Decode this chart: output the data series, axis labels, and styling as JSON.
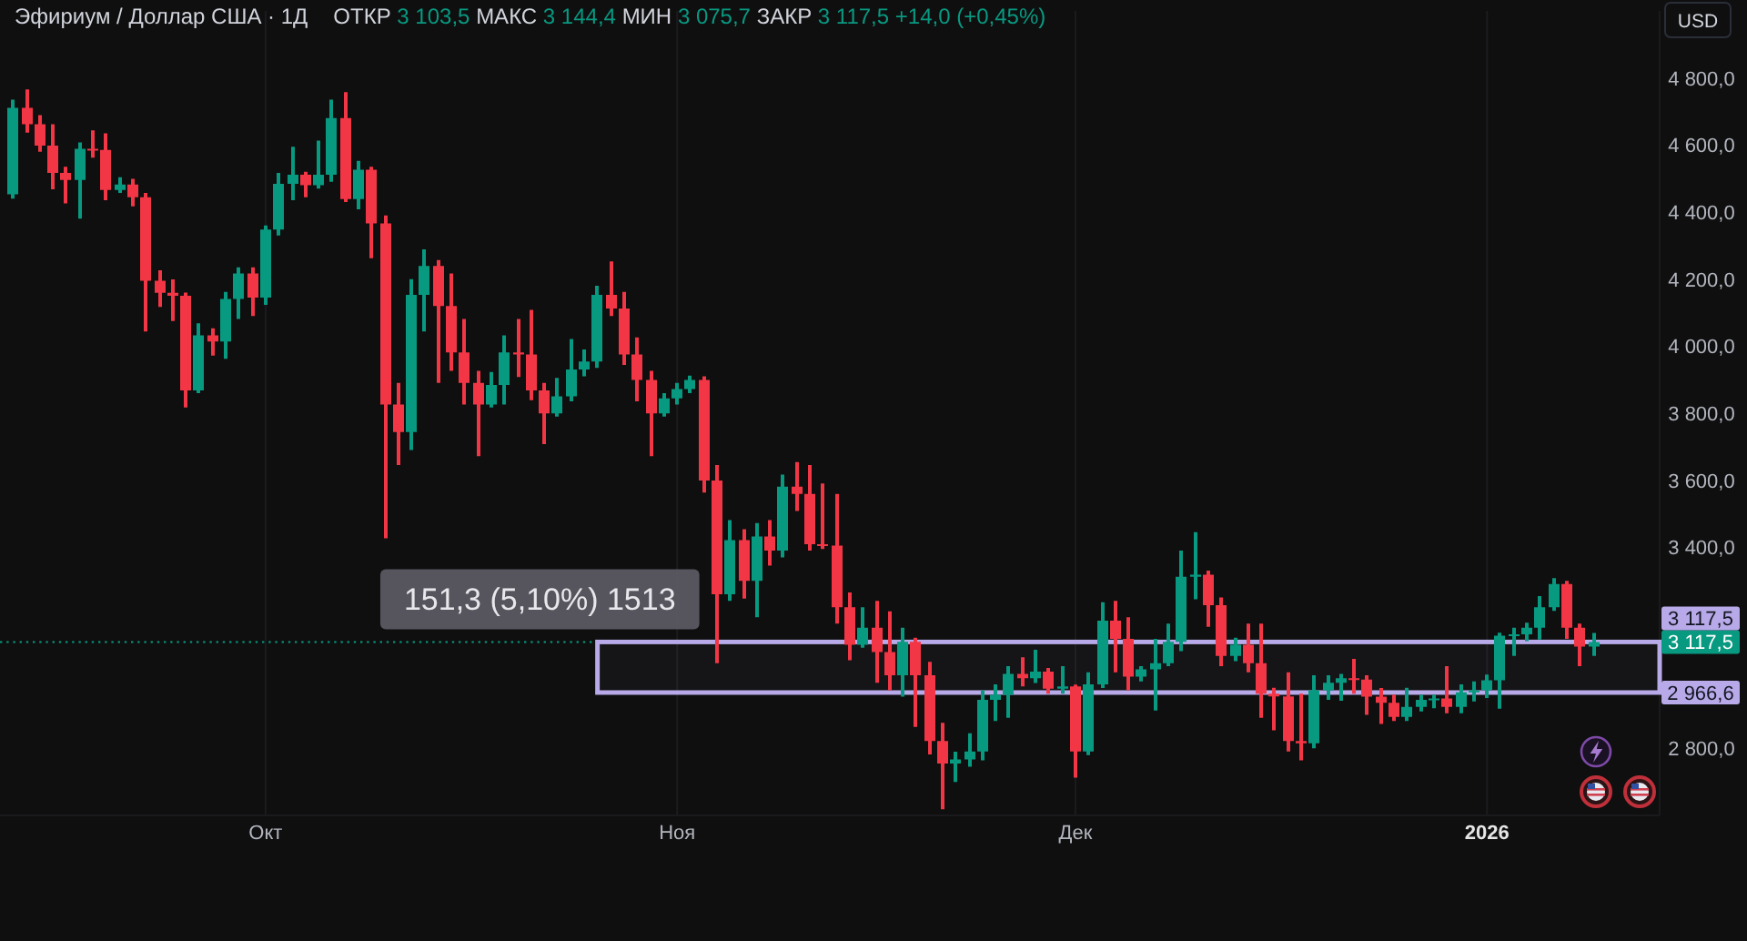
{
  "chart_data": {
    "type": "candlestick",
    "title": "Эфириум / Доллар США · 1Д",
    "subtitle": "ОТКР 3 103,5 МАКС 3 144,4 МИН 3 075,7 ЗАКР 3 117,5 +14,0 (+0,45%)",
    "ylabel": "USD",
    "categories": [
      null,
      null,
      null,
      null,
      null,
      null,
      null,
      null,
      null,
      null,
      null,
      null,
      null,
      null,
      null,
      null,
      null,
      null,
      null,
      "Окт",
      null,
      null,
      null,
      null,
      null,
      null,
      null,
      null,
      null,
      null,
      null,
      null,
      null,
      null,
      null,
      null,
      null,
      null,
      null,
      null,
      null,
      null,
      null,
      null,
      null,
      null,
      null,
      null,
      null,
      null,
      "Ноя",
      null,
      null,
      null,
      null,
      null,
      null,
      null,
      null,
      null,
      null,
      null,
      null,
      null,
      null,
      null,
      null,
      null,
      null,
      null,
      null,
      null,
      null,
      null,
      null,
      null,
      null,
      null,
      null,
      null,
      "Дек",
      null,
      null,
      null,
      null,
      null,
      null,
      null,
      null,
      null,
      null,
      null,
      null,
      null,
      null,
      null,
      null,
      null,
      null,
      null,
      null,
      null,
      null,
      null,
      null,
      null,
      null,
      null,
      null,
      null,
      null,
      "2026",
      null,
      null,
      null,
      null,
      null,
      null,
      null,
      null
    ],
    "ohlc": [
      [
        4453,
        4735,
        4440,
        4711
      ],
      [
        4711,
        4766,
        4637,
        4662
      ],
      [
        4662,
        4689,
        4580,
        4598
      ],
      [
        4598,
        4662,
        4468,
        4517
      ],
      [
        4517,
        4535,
        4426,
        4496
      ],
      [
        4496,
        4608,
        4380,
        4589
      ],
      [
        4589,
        4644,
        4562,
        4585
      ],
      [
        4585,
        4635,
        4435,
        4466
      ],
      [
        4466,
        4504,
        4457,
        4482
      ],
      [
        4482,
        4499,
        4417,
        4444
      ],
      [
        4444,
        4457,
        4044,
        4195
      ],
      [
        4195,
        4226,
        4117,
        4159
      ],
      [
        4159,
        4199,
        4075,
        4150
      ],
      [
        4150,
        4160,
        3817,
        3868
      ],
      [
        3868,
        4068,
        3860,
        4032
      ],
      [
        4032,
        4053,
        3972,
        4014
      ],
      [
        4014,
        4162,
        3962,
        4141
      ],
      [
        4141,
        4235,
        4081,
        4217
      ],
      [
        4217,
        4235,
        4090,
        4145
      ],
      [
        4145,
        4360,
        4123,
        4348
      ],
      [
        4348,
        4517,
        4330,
        4484
      ],
      [
        4484,
        4595,
        4435,
        4511
      ],
      [
        4511,
        4520,
        4444,
        4480
      ],
      [
        4480,
        4613,
        4470,
        4511
      ],
      [
        4511,
        4735,
        4490,
        4680
      ],
      [
        4680,
        4758,
        4430,
        4439
      ],
      [
        4439,
        4553,
        4408,
        4526
      ],
      [
        4526,
        4535,
        4262,
        4366
      ],
      [
        4366,
        4390,
        3427,
        3826
      ],
      [
        3826,
        3890,
        3645,
        3744
      ],
      [
        3744,
        4200,
        3690,
        4153
      ],
      [
        4153,
        4289,
        4044,
        4239
      ],
      [
        4239,
        4257,
        3890,
        4120
      ],
      [
        4120,
        4217,
        3926,
        3981
      ],
      [
        3981,
        4081,
        3826,
        3890
      ],
      [
        3890,
        3926,
        3672,
        3826
      ],
      [
        3826,
        3923,
        3817,
        3884
      ],
      [
        3884,
        4032,
        3826,
        3981
      ],
      [
        3981,
        4081,
        3908,
        3975
      ],
      [
        3975,
        4108,
        3839,
        3868
      ],
      [
        3868,
        3890,
        3708,
        3799
      ],
      [
        3799,
        3905,
        3790,
        3850
      ],
      [
        3850,
        4021,
        3835,
        3930
      ],
      [
        3930,
        3990,
        3910,
        3954
      ],
      [
        3954,
        4180,
        3935,
        4153
      ],
      [
        4153,
        4253,
        4090,
        4112
      ],
      [
        4112,
        4162,
        3944,
        3975
      ],
      [
        3975,
        4026,
        3835,
        3899
      ],
      [
        3899,
        3926,
        3672,
        3799
      ],
      [
        3799,
        3860,
        3790,
        3844
      ],
      [
        3844,
        3890,
        3826,
        3872
      ],
      [
        3872,
        3912,
        3860,
        3899
      ],
      [
        3899,
        3910,
        3563,
        3599
      ],
      [
        3599,
        3645,
        3054,
        3260
      ],
      [
        3260,
        3481,
        3240,
        3421
      ],
      [
        3421,
        3454,
        3247,
        3300
      ],
      [
        3300,
        3472,
        3191,
        3432
      ],
      [
        3432,
        3481,
        3345,
        3390
      ],
      [
        3390,
        3617,
        3370,
        3581
      ],
      [
        3581,
        3654,
        3508,
        3559
      ],
      [
        3559,
        3645,
        3390,
        3409
      ],
      [
        3409,
        3590,
        3395,
        3405
      ],
      [
        3405,
        3559,
        3172,
        3221
      ],
      [
        3221,
        3265,
        3063,
        3109
      ],
      [
        3109,
        3221,
        3100,
        3160
      ],
      [
        3160,
        3240,
        2996,
        3087
      ],
      [
        3087,
        3209,
        2973,
        3018
      ],
      [
        3018,
        3160,
        2954,
        3118
      ],
      [
        3118,
        3130,
        2864,
        3018
      ],
      [
        3018,
        3058,
        2782,
        2822
      ],
      [
        2822,
        2876,
        2618,
        2755
      ],
      [
        2755,
        2790,
        2700,
        2767
      ],
      [
        2767,
        2845,
        2745,
        2791
      ],
      [
        2791,
        2973,
        2764,
        2945
      ],
      [
        2945,
        2991,
        2882,
        2960
      ],
      [
        2960,
        3045,
        2891,
        3022
      ],
      [
        3022,
        3072,
        2985,
        3009
      ],
      [
        3009,
        3094,
        2995,
        3029
      ],
      [
        3029,
        3040,
        2963,
        2978
      ],
      [
        2978,
        3045,
        2963,
        2985
      ],
      [
        2985,
        2990,
        2713,
        2791
      ],
      [
        2791,
        3027,
        2780,
        2991
      ],
      [
        2991,
        3236,
        2980,
        3181
      ],
      [
        3181,
        3240,
        3027,
        3127
      ],
      [
        3127,
        3191,
        2973,
        3014
      ],
      [
        3014,
        3045,
        3000,
        3036
      ],
      [
        3036,
        3127,
        2913,
        3054
      ],
      [
        3054,
        3172,
        3045,
        3118
      ],
      [
        3118,
        3390,
        3090,
        3312
      ],
      [
        3312,
        3445,
        3245,
        3318
      ],
      [
        3318,
        3330,
        3163,
        3227
      ],
      [
        3227,
        3250,
        3045,
        3076
      ],
      [
        3076,
        3130,
        3060,
        3109
      ],
      [
        3109,
        3172,
        3027,
        3054
      ],
      [
        3054,
        3172,
        2891,
        2963
      ],
      [
        2963,
        2981,
        2854,
        2955
      ],
      [
        2955,
        3027,
        2791,
        2822
      ],
      [
        2822,
        2963,
        2764,
        2815
      ],
      [
        2815,
        3018,
        2800,
        2973
      ],
      [
        2973,
        3018,
        2945,
        2996
      ],
      [
        2996,
        3022,
        2942,
        3009
      ],
      [
        3009,
        3067,
        2963,
        3005
      ],
      [
        3005,
        3018,
        2900,
        2954
      ],
      [
        2954,
        2980,
        2873,
        2936
      ],
      [
        2936,
        2960,
        2882,
        2894
      ],
      [
        2894,
        2981,
        2882,
        2924
      ],
      [
        2924,
        2960,
        2910,
        2945
      ],
      [
        2945,
        2960,
        2920,
        2949
      ],
      [
        2949,
        3045,
        2905,
        2924
      ],
      [
        2924,
        2991,
        2905,
        2967
      ],
      [
        2967,
        3000,
        2940,
        2973
      ],
      [
        2973,
        3020,
        2950,
        3003
      ],
      [
        3003,
        3145,
        2918,
        3136
      ],
      [
        3136,
        3160,
        3076,
        3140
      ],
      [
        3140,
        3175,
        3120,
        3160
      ],
      [
        3160,
        3254,
        3125,
        3221
      ],
      [
        3221,
        3308,
        3210,
        3290
      ],
      [
        3290,
        3300,
        3127,
        3160
      ],
      [
        3160,
        3172,
        3045,
        3103.5
      ],
      [
        3103.5,
        3144.4,
        3075.7,
        3117.5
      ]
    ],
    "colors": [
      "#089981",
      "#f23645",
      "#f23645",
      "#f23645",
      "#f23645",
      "#089981",
      "#f23645",
      "#f23645",
      "#089981",
      "#f23645",
      "#f23645",
      "#f23645",
      "#f23645",
      "#f23645",
      "#089981",
      "#f23645",
      "#089981",
      "#089981",
      "#f23645",
      "#089981",
      "#089981",
      "#089981",
      "#f23645",
      "#089981",
      "#089981",
      "#f23645",
      "#089981",
      "#f23645",
      "#f23645",
      "#f23645",
      "#089981",
      "#089981",
      "#f23645",
      "#f23645",
      "#f23645",
      "#f23645",
      "#089981",
      "#089981",
      "#f23645",
      "#f23645",
      "#f23645",
      "#089981",
      "#089981",
      "#089981",
      "#089981",
      "#f23645",
      "#f23645",
      "#f23645",
      "#f23645",
      "#089981",
      "#089981",
      "#089981",
      "#f23645",
      "#f23645",
      "#089981",
      "#f23645",
      "#089981",
      "#f23645",
      "#089981",
      "#f23645",
      "#f23645",
      "#f23645",
      "#f23645",
      "#f23645",
      "#089981",
      "#f23645",
      "#f23645",
      "#089981",
      "#f23645",
      "#f23645",
      "#f23645",
      "#089981",
      "#089981",
      "#089981",
      "#089981",
      "#089981",
      "#f23645",
      "#089981",
      "#f23645",
      "#089981",
      "#f23645",
      "#089981",
      "#089981",
      "#f23645",
      "#f23645",
      "#089981",
      "#089981",
      "#089981",
      "#089981",
      "#089981",
      "#f23645",
      "#f23645",
      "#089981",
      "#f23645",
      "#f23645",
      "#f23645",
      "#f23645",
      "#f23645",
      "#089981",
      "#089981",
      "#089981",
      "#f23645",
      "#f23645",
      "#f23645",
      "#f23645",
      "#089981",
      "#089981",
      "#089981",
      "#f23645",
      "#089981",
      "#089981",
      "#089981",
      "#089981",
      "#089981",
      "#089981",
      "#089981",
      "#089981",
      "#f23645",
      "#f23645",
      "#089981"
    ],
    "ylim": [
      2600,
      5000
    ],
    "yticks": [
      {
        "value": 2800,
        "label": "2 800,0"
      },
      {
        "value": 3400,
        "label": "3 400,0"
      },
      {
        "value": 3600,
        "label": "3 600,0"
      },
      {
        "value": 3800,
        "label": "3 800,0"
      },
      {
        "value": 4000,
        "label": "4 000,0"
      },
      {
        "value": 4200,
        "label": "4 200,0"
      },
      {
        "value": 4400,
        "label": "4 400,0"
      },
      {
        "value": 4600,
        "label": "4 600,0"
      },
      {
        "value": 4800,
        "label": "4 800,0"
      }
    ],
    "grid": "x",
    "ref_lines": [
      {
        "axis": "y",
        "value": 3117.5,
        "label": "3 117,5",
        "color": "#089981",
        "line_style": "dotted"
      }
    ],
    "bands": [
      {
        "axis": "y",
        "from": 2966.6,
        "to": 3117.5,
        "label": "151,3 (5,10%) 1513",
        "color": "#b8a9e8"
      }
    ],
    "annotations": [
      "3 117,5",
      "2 966,6"
    ]
  }
}
